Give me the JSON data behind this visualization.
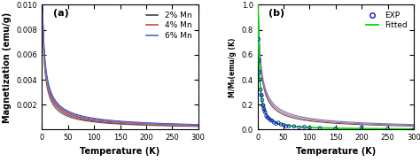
{
  "panel_a": {
    "label": "(a)",
    "xlabel": "Temperature (K)",
    "ylabel": "Magnetization (emu/g)",
    "xlim": [
      0,
      300
    ],
    "ylim": [
      0,
      0.01
    ],
    "yticks": [
      0.002,
      0.004,
      0.006,
      0.008,
      0.01
    ],
    "xticks": [
      0,
      50,
      100,
      150,
      200,
      250,
      300
    ],
    "fc_zfc_pairs": [
      {
        "label": "2% Mn",
        "fc_color": "#222222",
        "zfc_color": "#555555",
        "A_fc": 0.0098,
        "A_zfc": 0.0088,
        "alpha": 0.82,
        "T0": 3
      },
      {
        "label": "4% Mn",
        "fc_color": "#bb2222",
        "zfc_color": "#cc6666",
        "A_fc": 0.0098,
        "A_zfc": 0.009,
        "alpha": 0.78,
        "T0": 3
      },
      {
        "label": "6% Mn",
        "fc_color": "#3333bb",
        "zfc_color": "#6677cc",
        "A_fc": 0.01,
        "A_zfc": 0.0094,
        "alpha": 0.74,
        "T0": 3
      }
    ],
    "legend_colors": [
      "#444444",
      "#cc4444",
      "#5566bb"
    ],
    "legend_labels": [
      "2% Mn",
      "4% Mn",
      "6% Mn"
    ]
  },
  "panel_b": {
    "label": "(b)",
    "xlabel": "Temperature (K)",
    "ylabel": "M/M₀(emu/g (K)",
    "xlim": [
      0,
      300
    ],
    "ylim": [
      0,
      1.0
    ],
    "yticks": [
      0.0,
      0.2,
      0.4,
      0.6,
      0.8,
      1.0
    ],
    "xticks": [
      0,
      50,
      100,
      150,
      200,
      250,
      300
    ],
    "curve_pairs": [
      {
        "color": "#555555",
        "alpha": 0.82,
        "T0": 3
      },
      {
        "color": "#cc6666",
        "alpha": 0.78,
        "T0": 3
      },
      {
        "color": "#6677cc",
        "alpha": 0.74,
        "T0": 3
      }
    ],
    "fitted_color": "#00dd00",
    "exp_color": "#1111cc",
    "fitted_alpha": 1.15,
    "fitted_T0": 2
  },
  "background_color": "#ffffff",
  "tick_fontsize": 6,
  "label_fontsize": 7,
  "legend_fontsize": 6.5
}
